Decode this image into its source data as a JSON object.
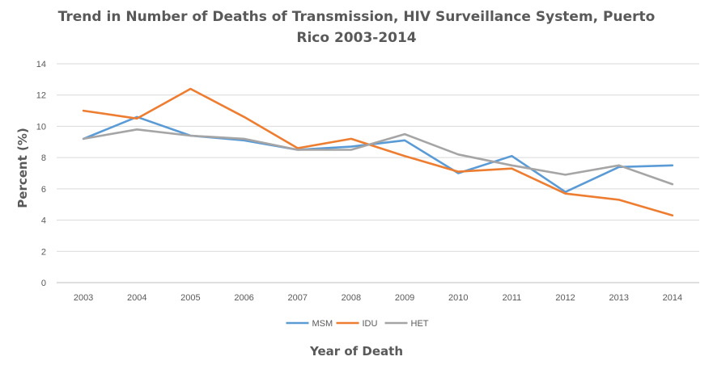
{
  "chart_data": {
    "type": "line",
    "title_line1": "Trend in Number of Deaths of Transmission,  HIV Surveillance System, Puerto",
    "title_line2": "Rico 2003-2014",
    "xlabel": "Year of Death",
    "ylabel": "Percent (%)",
    "ylim": [
      0,
      14
    ],
    "yticks": [
      0,
      2,
      4,
      6,
      8,
      10,
      12,
      14
    ],
    "grid": true,
    "legend_position": "bottom",
    "categories": [
      "2003",
      "2004",
      "2005",
      "2006",
      "2007",
      "2008",
      "2009",
      "2010",
      "2011",
      "2012",
      "2013",
      "2014"
    ],
    "series": [
      {
        "name": "MSM",
        "color": "#5B9BD5",
        "values": [
          9.2,
          10.6,
          9.4,
          9.1,
          8.5,
          8.7,
          9.1,
          7.0,
          8.1,
          5.8,
          7.4,
          7.5
        ]
      },
      {
        "name": "IDU",
        "color": "#ED7D31",
        "values": [
          11.0,
          10.5,
          12.4,
          10.6,
          8.6,
          9.2,
          8.1,
          7.1,
          7.3,
          5.7,
          5.3,
          4.3
        ]
      },
      {
        "name": "HET",
        "color": "#A5A5A5",
        "values": [
          9.2,
          9.8,
          9.4,
          9.2,
          8.5,
          8.5,
          9.5,
          8.2,
          7.5,
          6.9,
          7.5,
          6.3
        ]
      }
    ]
  }
}
